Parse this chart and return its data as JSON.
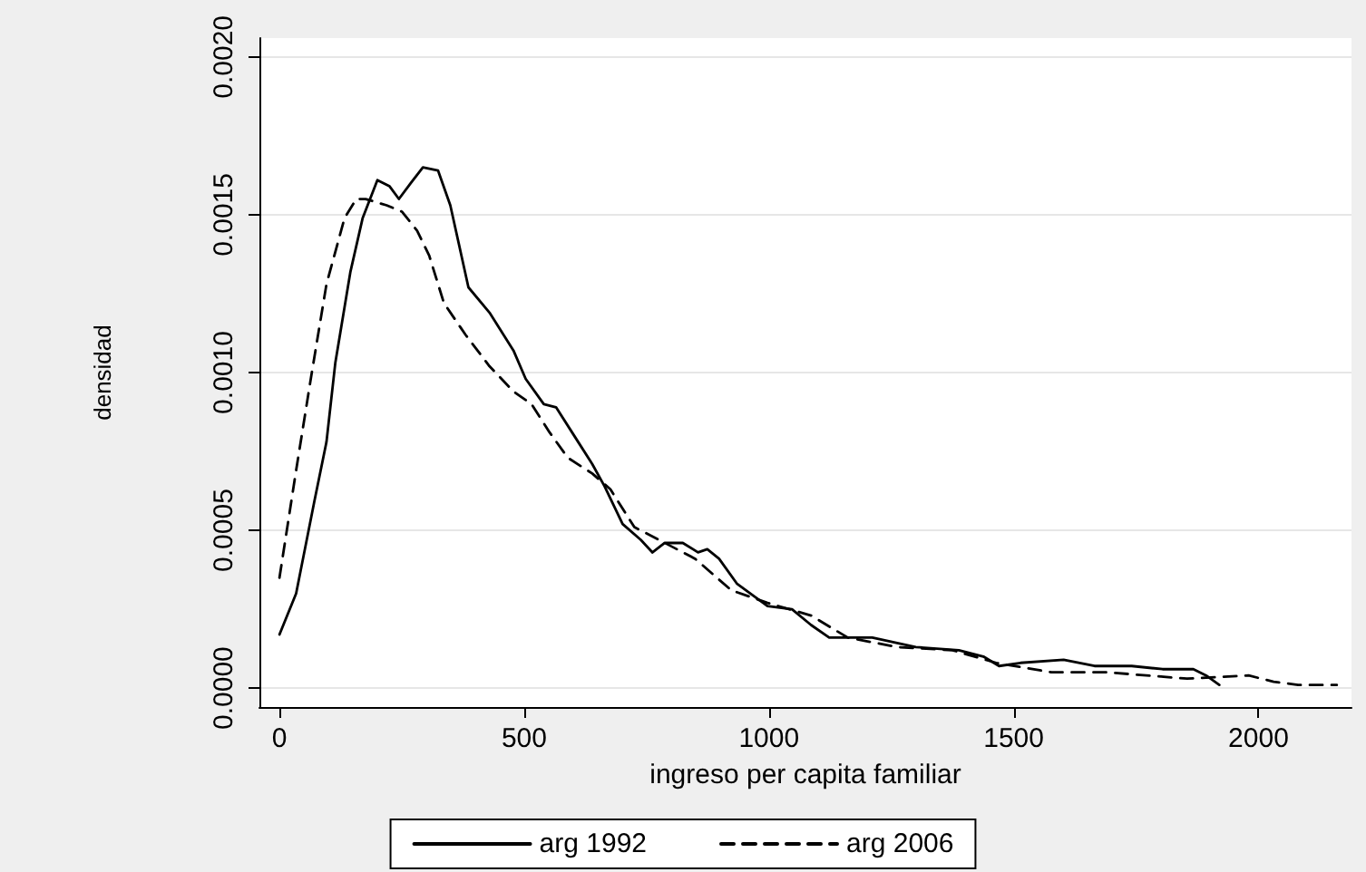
{
  "chart_data": {
    "type": "line",
    "xlabel": "ingreso per capita familiar",
    "ylabel": "densidad",
    "xlim": [
      -41,
      2190
    ],
    "xticks": [
      0,
      500,
      1000,
      1500,
      2000
    ],
    "ylim": [
      -6e-05,
      0.00206
    ],
    "yticks": [
      {
        "value": 0,
        "label": "0.0000"
      },
      {
        "value": 0.0005,
        "label": "0.0005"
      },
      {
        "value": 0.001,
        "label": "0.0010"
      },
      {
        "value": 0.0015,
        "label": "0.0015"
      },
      {
        "value": 0.002,
        "label": "0.0020"
      }
    ],
    "grid": "y",
    "legend": "bottom",
    "marker": "none",
    "series": [
      {
        "name": "arg 1992",
        "color": "#000000",
        "line_style": "solid",
        "x": [
          0,
          34,
          71,
          96,
          114,
          145,
          170,
          200,
          225,
          244,
          268,
          293,
          324,
          349,
          386,
          429,
          478,
          503,
          540,
          565,
          602,
          639,
          664,
          701,
          738,
          762,
          787,
          824,
          855,
          874,
          898,
          935,
          997,
          1047,
          1086,
          1123,
          1211,
          1300,
          1388,
          1438,
          1470,
          1514,
          1602,
          1665,
          1741,
          1804,
          1867,
          1893,
          1920
        ],
        "values": [
          0.00017,
          0.0003,
          0.00059,
          0.00078,
          0.00103,
          0.00132,
          0.00149,
          0.00161,
          0.00159,
          0.00155,
          0.0016,
          0.00165,
          0.00164,
          0.00153,
          0.00127,
          0.00119,
          0.00107,
          0.00098,
          0.0009,
          0.00089,
          0.0008,
          0.00071,
          0.00064,
          0.00052,
          0.00047,
          0.00043,
          0.00046,
          0.00046,
          0.00043,
          0.00044,
          0.00041,
          0.00033,
          0.00026,
          0.00025,
          0.0002,
          0.00016,
          0.00016,
          0.00013,
          0.00012,
          0.0001,
          7e-05,
          8e-05,
          9e-05,
          7e-05,
          7e-05,
          6e-05,
          6e-05,
          4e-05,
          1e-05
        ]
      },
      {
        "name": "arg 2006",
        "color": "#000000",
        "line_style": "dashed",
        "x": [
          0,
          34,
          65,
          96,
          133,
          157,
          176,
          219,
          250,
          281,
          306,
          336,
          380,
          429,
          478,
          515,
          552,
          589,
          639,
          676,
          725,
          775,
          849,
          923,
          997,
          1086,
          1161,
          1262,
          1375,
          1464,
          1577,
          1691,
          1854,
          1980,
          2031,
          2081,
          2160
        ],
        "values": [
          0.00035,
          0.00069,
          0.00099,
          0.00128,
          0.00149,
          0.00155,
          0.00155,
          0.00153,
          0.00151,
          0.00145,
          0.00137,
          0.00122,
          0.00112,
          0.00102,
          0.00094,
          0.0009,
          0.00081,
          0.00073,
          0.00068,
          0.00063,
          0.00051,
          0.00047,
          0.00041,
          0.00031,
          0.00027,
          0.00023,
          0.00016,
          0.00013,
          0.00012,
          8e-05,
          5e-05,
          5e-05,
          3e-05,
          4e-05,
          2e-05,
          1e-05,
          1e-05
        ]
      }
    ]
  }
}
